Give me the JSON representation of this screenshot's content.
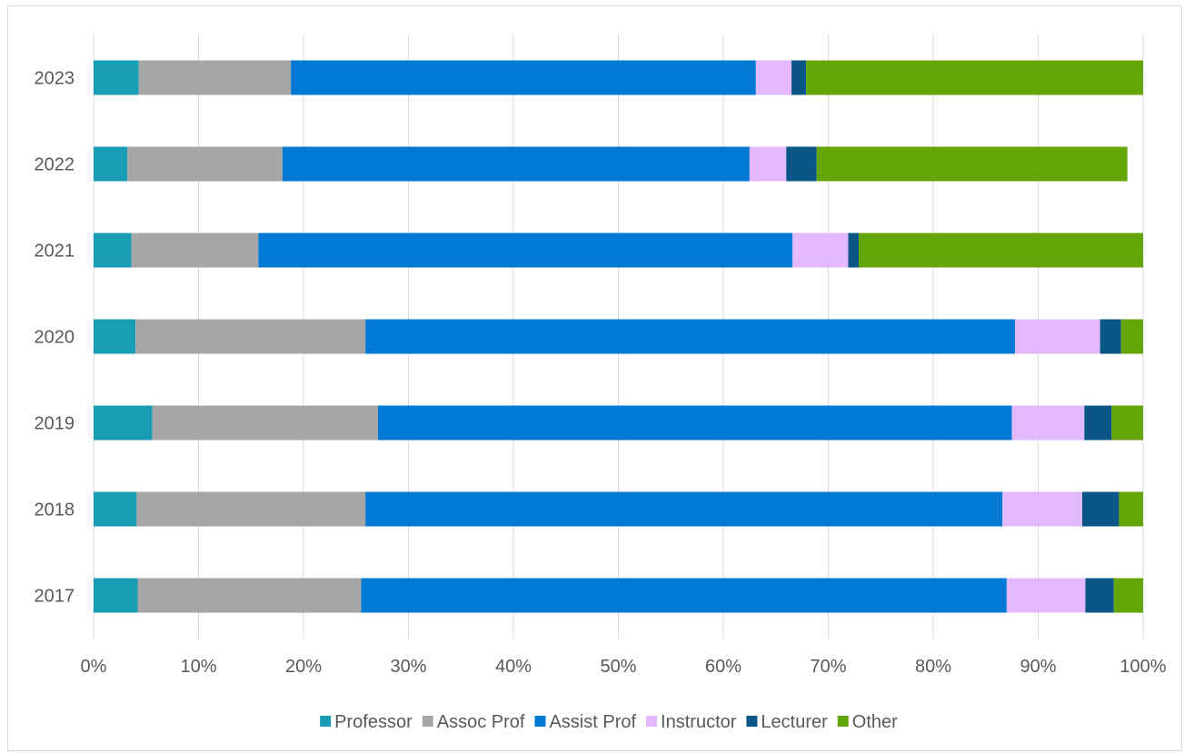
{
  "chart_data": {
    "type": "bar",
    "orientation": "horizontal",
    "stacked": "percent",
    "categories": [
      "2017",
      "2018",
      "2019",
      "2020",
      "2021",
      "2022",
      "2023"
    ],
    "series": [
      {
        "name": "Professor",
        "color": "#1a9cb4",
        "values": [
          4.2,
          4.1,
          5.6,
          4.0,
          3.6,
          3.2,
          4.3
        ]
      },
      {
        "name": "Assoc Prof",
        "color": "#a6a6a6",
        "values": [
          21.3,
          21.8,
          21.5,
          21.9,
          12.1,
          14.8,
          14.5
        ]
      },
      {
        "name": "Assist Prof",
        "color": "#0078d4",
        "values": [
          61.5,
          60.7,
          60.4,
          61.9,
          50.9,
          44.5,
          44.3
        ]
      },
      {
        "name": "Instructor",
        "color": "#e3b8ff",
        "values": [
          7.5,
          7.6,
          6.9,
          8.1,
          5.3,
          3.5,
          3.4
        ]
      },
      {
        "name": "Lecturer",
        "color": "#0b5587",
        "values": [
          2.7,
          3.5,
          2.6,
          2.0,
          1.0,
          2.9,
          1.4
        ]
      },
      {
        "name": "Other",
        "color": "#63a60a",
        "values": [
          2.8,
          2.3,
          3.0,
          2.1,
          27.1,
          29.6,
          32.1
        ]
      }
    ],
    "xticks": [
      "0%",
      "10%",
      "20%",
      "30%",
      "40%",
      "50%",
      "60%",
      "70%",
      "80%",
      "90%",
      "100%"
    ],
    "xlim": [
      0,
      100
    ],
    "grid": true,
    "legend": "bottom",
    "title": "",
    "xlabel": "",
    "ylabel": ""
  }
}
